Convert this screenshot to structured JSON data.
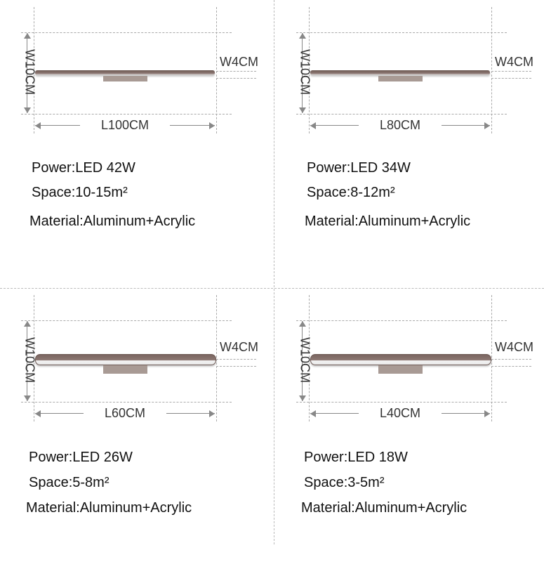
{
  "panels": [
    {
      "width_label": "W10CM",
      "depth_label": "W4CM",
      "length_label": "L100CM",
      "power": "Power:LED 42W",
      "space": "Space:10-15m²",
      "material": "Material:Aluminum+Acrylic"
    },
    {
      "width_label": "W10CM",
      "depth_label": "W4CM",
      "length_label": "L80CM",
      "power": "Power:LED 34W",
      "space": "Space:8-12m²",
      "material": "Material:Aluminum+Acrylic"
    },
    {
      "width_label": "W10CM",
      "depth_label": "W4CM",
      "length_label": "L60CM",
      "power": "Power:LED 26W",
      "space": "Space:5-8m²",
      "material": "Material:Aluminum+Acrylic"
    },
    {
      "width_label": "W10CM",
      "depth_label": "W4CM",
      "length_label": "L40CM",
      "power": "Power:LED 18W",
      "space": "Space:3-5m²",
      "material": "Material:Aluminum+Acrylic"
    }
  ],
  "colors": {
    "lamp_body": "#7a6560",
    "mount": "#a89a94"
  }
}
